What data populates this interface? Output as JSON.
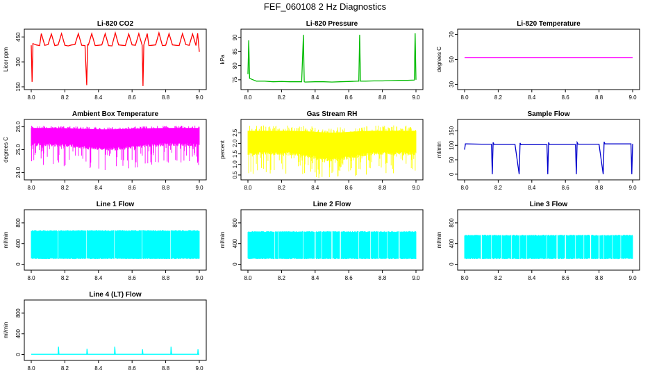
{
  "figure": {
    "title": "FEF_060108  2 Hz Diagnostics"
  },
  "chart_data": [
    {
      "type": "line",
      "title": "Li-820 CO2",
      "ylabel": "Licor ppm",
      "color": "#ff0000",
      "xlim": [
        8.0,
        9.0
      ],
      "xticks": [
        "8.0",
        "8.2",
        "8.4",
        "8.6",
        "8.8",
        "9.0"
      ],
      "ylim": [
        150,
        480
      ],
      "yticks": [
        "150",
        "300",
        "450"
      ],
      "ytick_values": [
        150,
        300,
        450
      ],
      "series": [
        {
          "x": [
            8.0,
            8.005,
            8.01,
            8.03,
            8.05,
            8.06,
            8.08,
            8.1,
            8.12,
            8.14,
            8.16,
            8.18,
            8.2,
            8.22,
            8.24,
            8.26,
            8.28,
            8.3,
            8.32,
            8.33,
            8.335,
            8.34,
            8.36,
            8.38,
            8.4,
            8.42,
            8.44,
            8.46,
            8.48,
            8.5,
            8.52,
            8.54,
            8.56,
            8.58,
            8.6,
            8.62,
            8.64,
            8.66,
            8.665,
            8.67,
            8.69,
            8.7,
            8.72,
            8.74,
            8.76,
            8.78,
            8.8,
            8.82,
            8.84,
            8.86,
            8.88,
            8.9,
            8.92,
            8.94,
            8.96,
            8.98,
            8.99,
            9.0
          ],
          "y": [
            400,
            180,
            410,
            402,
            398,
            470,
            400,
            404,
            468,
            398,
            402,
            470,
            400,
            396,
            402,
            404,
            470,
            400,
            398,
            160,
            404,
            402,
            470,
            398,
            400,
            402,
            470,
            398,
            396,
            474,
            402,
            400,
            398,
            468,
            402,
            400,
            470,
            400,
            155,
            402,
            470,
            398,
            400,
            402,
            474,
            398,
            400,
            470,
            402,
            400,
            398,
            470,
            404,
            400,
            468,
            398,
            472,
            360
          ]
        }
      ]
    },
    {
      "type": "line",
      "title": "Li-820 Pressure",
      "ylabel": "kPa",
      "color": "#00bb00",
      "xlim": [
        8.0,
        9.0
      ],
      "xticks": [
        "8.0",
        "8.2",
        "8.4",
        "8.6",
        "8.8",
        "9.0"
      ],
      "ylim": [
        72.5,
        92
      ],
      "yticks": [
        "75",
        "80",
        "85",
        "90"
      ],
      "ytick_values": [
        75,
        80,
        85,
        90
      ],
      "series": [
        {
          "x": [
            8.0,
            8.005,
            8.01,
            8.05,
            8.1,
            8.15,
            8.2,
            8.25,
            8.3,
            8.32,
            8.33,
            8.335,
            8.34,
            8.4,
            8.45,
            8.5,
            8.55,
            8.6,
            8.65,
            8.66,
            8.665,
            8.67,
            8.7,
            8.75,
            8.8,
            8.85,
            8.9,
            8.95,
            8.99,
            8.995,
            9.0
          ],
          "y": [
            77,
            89,
            75.5,
            74.5,
            74.5,
            74.3,
            74.4,
            74.3,
            74.3,
            74.3,
            91,
            74.3,
            74.2,
            74.3,
            74.3,
            74.2,
            74.3,
            74.4,
            74.5,
            74.5,
            91,
            74.5,
            74.5,
            74.6,
            74.6,
            74.7,
            74.8,
            74.8,
            74.9,
            91.5,
            75
          ]
        }
      ]
    },
    {
      "type": "line",
      "title": "Li-820 Temperature",
      "ylabel": "degrees C",
      "color": "#ff00ff",
      "xlim": [
        8.0,
        9.0
      ],
      "xticks": [
        "8.0",
        "8.2",
        "8.4",
        "8.6",
        "8.8",
        "9.0"
      ],
      "ylim": [
        28,
        72
      ],
      "yticks": [
        "30",
        "50",
        "70"
      ],
      "ytick_values": [
        30,
        50,
        70
      ],
      "series": [
        {
          "x": [
            8.0,
            9.0
          ],
          "y": [
            51.5,
            51.5
          ]
        }
      ]
    },
    {
      "type": "line",
      "title": "Ambient Box Temperature",
      "ylabel": "degrees C",
      "color": "#ff00ff",
      "xlim": [
        8.0,
        9.0
      ],
      "xticks": [
        "8.0",
        "8.2",
        "8.4",
        "8.6",
        "8.8",
        "9.0"
      ],
      "ylim": [
        23.8,
        26.2
      ],
      "yticks": [
        "24.0",
        "25.0",
        "26.0"
      ],
      "ytick_values": [
        24,
        25,
        26
      ],
      "band": {
        "lower": 25.3,
        "upper": 25.95,
        "noise_low": 24.3,
        "noise_high": 26.05,
        "dip_center": 8.45,
        "dip_width": 0.2,
        "dip_amount": 0.2
      }
    },
    {
      "type": "line",
      "title": "Gas Stream RH",
      "ylabel": "percent",
      "color": "#ffff00",
      "xlim": [
        8.0,
        9.0
      ],
      "xticks": [
        "8.0",
        "8.2",
        "8.4",
        "8.6",
        "8.8",
        "9.0"
      ],
      "ylim": [
        0.4,
        3.0
      ],
      "yticks": [
        "0.5",
        "1.5",
        "2.5"
      ],
      "ytick_values": [
        0.5,
        1.5,
        2.5
      ],
      "yticks_minor": [
        "1.0",
        "2.0"
      ],
      "ytick_minor_values": [
        1.0,
        2.0
      ],
      "band": {
        "lower": 1.6,
        "upper": 2.6,
        "noise_low": 0.55,
        "noise_high": 2.85,
        "dip_center": 8.5,
        "dip_width": 0.15,
        "dip_amount": 0.3
      }
    },
    {
      "type": "line",
      "title": "Sample Flow",
      "ylabel": "ml/min",
      "color": "#0000cc",
      "xlim": [
        8.0,
        9.0
      ],
      "xticks": [
        "8.0",
        "8.2",
        "8.4",
        "8.6",
        "8.8",
        "9.0"
      ],
      "ylim": [
        -10,
        180
      ],
      "yticks": [
        "0",
        "50",
        "100",
        "150"
      ],
      "ytick_values": [
        0,
        50,
        100,
        150
      ],
      "series": [
        {
          "x": [
            8.0,
            8.005,
            8.01,
            8.1,
            8.16,
            8.165,
            8.17,
            8.175,
            8.3,
            8.325,
            8.33,
            8.335,
            8.4,
            8.49,
            8.495,
            8.5,
            8.505,
            8.6,
            8.66,
            8.665,
            8.67,
            8.675,
            8.8,
            8.825,
            8.83,
            8.835,
            8.9,
            8.99,
            8.995,
            9.0
          ],
          "y": [
            85,
            105,
            105,
            104,
            104,
            0,
            110,
            103,
            103,
            0,
            108,
            102,
            102,
            102,
            0,
            110,
            103,
            103,
            103,
            0,
            110,
            104,
            104,
            0,
            112,
            105,
            105,
            105,
            0,
            105
          ]
        }
      ]
    },
    {
      "type": "line",
      "title": "Line 1 Flow",
      "ylabel": "ml/min",
      "color": "#00ffff",
      "xlim": [
        8.0,
        9.0
      ],
      "xticks": [
        "8.0",
        "8.2",
        "8.4",
        "8.6",
        "8.8",
        "9.0"
      ],
      "ylim": [
        -60,
        1000
      ],
      "yticks": [
        "0",
        "400",
        "800"
      ],
      "ytick_values": [
        0,
        400,
        800
      ],
      "band": {
        "lower": 100,
        "upper": 660,
        "gaps": [
          8.16,
          8.33,
          8.495,
          8.66,
          8.83
        ]
      }
    },
    {
      "type": "line",
      "title": "Line 2 Flow",
      "ylabel": "ml/min",
      "color": "#00ffff",
      "xlim": [
        8.0,
        9.0
      ],
      "xticks": [
        "8.0",
        "8.2",
        "8.4",
        "8.6",
        "8.8",
        "9.0"
      ],
      "ylim": [
        -60,
        1000
      ],
      "yticks": [
        "0",
        "400",
        "800"
      ],
      "ytick_values": [
        0,
        400,
        800
      ],
      "band": {
        "lower": 100,
        "upper": 640,
        "gaps": [
          8.16,
          8.18,
          8.33,
          8.4,
          8.44,
          8.5,
          8.55,
          8.66,
          8.73,
          8.78,
          8.83,
          8.9
        ]
      }
    },
    {
      "type": "line",
      "title": "Line 3 Flow",
      "ylabel": "ml/min",
      "color": "#00ffff",
      "xlim": [
        8.0,
        9.0
      ],
      "xticks": [
        "8.0",
        "8.2",
        "8.4",
        "8.6",
        "8.8",
        "9.0"
      ],
      "ylim": [
        -60,
        1000
      ],
      "yticks": [
        "0",
        "400",
        "800"
      ],
      "ytick_values": [
        0,
        400,
        800
      ],
      "band": {
        "lower": 100,
        "upper": 570,
        "gaps": [
          8.1,
          8.16,
          8.22,
          8.28,
          8.33,
          8.37,
          8.49,
          8.55,
          8.6,
          8.66,
          8.71,
          8.75,
          8.8,
          8.83,
          8.88,
          8.93
        ]
      }
    },
    {
      "type": "line",
      "title": "Line 4 (LT) Flow",
      "ylabel": "ml/min",
      "color": "#00ffff",
      "xlim": [
        8.0,
        9.0
      ],
      "xticks": [
        "8.0",
        "8.2",
        "8.4",
        "8.6",
        "8.8",
        "9.0"
      ],
      "ylim": [
        -60,
        1000
      ],
      "yticks": [
        "0",
        "400",
        "800"
      ],
      "ytick_values": [
        0,
        400,
        800
      ],
      "series": [
        {
          "x": [
            8.0,
            8.16,
            8.162,
            8.165,
            8.33,
            8.332,
            8.335,
            8.495,
            8.497,
            8.5,
            8.66,
            8.662,
            8.665,
            8.83,
            8.832,
            8.835,
            8.99,
            8.992,
            8.995,
            9.0
          ],
          "y": [
            5,
            5,
            150,
            5,
            5,
            110,
            5,
            5,
            150,
            5,
            5,
            100,
            5,
            5,
            150,
            5,
            5,
            100,
            5,
            5
          ]
        }
      ]
    }
  ]
}
